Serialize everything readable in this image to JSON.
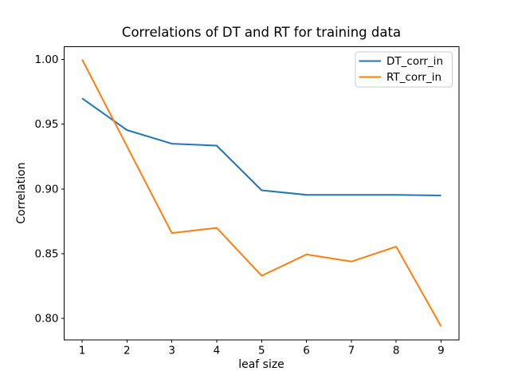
{
  "chart_data": {
    "type": "line",
    "title": "Correlations of DT and RT for training data",
    "xlabel": "leaf size",
    "ylabel": "Correlation",
    "x": [
      1,
      2,
      3,
      4,
      5,
      6,
      7,
      8,
      9
    ],
    "series": [
      {
        "name": "DT_corr_in",
        "color": "#1f77b4",
        "values": [
          0.97,
          0.9455,
          0.935,
          0.9335,
          0.899,
          0.8955,
          0.8955,
          0.8955,
          0.895
        ]
      },
      {
        "name": "RT_corr_in",
        "color": "#ff7f0e",
        "values": [
          1.0,
          0.933,
          0.866,
          0.87,
          0.833,
          0.8495,
          0.844,
          0.8555,
          0.794
        ]
      }
    ],
    "xlim": [
      0.6,
      9.4
    ],
    "ylim": [
      0.7835,
      1.01
    ],
    "xticks": [
      1,
      2,
      3,
      4,
      5,
      6,
      7,
      8,
      9
    ],
    "xtick_labels": [
      "1",
      "2",
      "3",
      "4",
      "5",
      "6",
      "7",
      "8",
      "9"
    ],
    "yticks": [
      0.8,
      0.85,
      0.9,
      0.95,
      1.0
    ],
    "ytick_labels": [
      "0.80",
      "0.85",
      "0.90",
      "0.95",
      "1.00"
    ],
    "grid": false,
    "legend_position": "upper right",
    "legend_entries": [
      "DT_corr_in",
      "RT_corr_in"
    ]
  },
  "colors": {
    "background": "#ffffff",
    "spine": "#000000",
    "tick": "#000000",
    "text": "#000000",
    "legend_border": "#cccccc",
    "legend_fill": "#ffffff",
    "series_blue": "#1f77b4",
    "series_orange": "#ff7f0e"
  }
}
